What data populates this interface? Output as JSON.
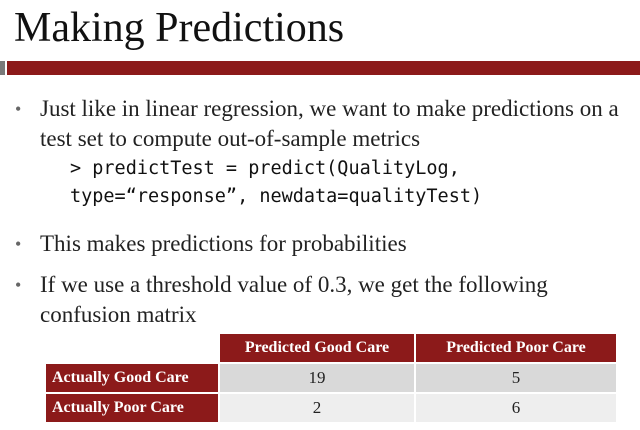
{
  "slide": {
    "title": "Making Predictions",
    "bullets": [
      "Just like in linear regression, we want to make predictions on a test set to compute out-of-sample metrics",
      "This makes predictions for probabilities",
      "If we use a threshold value of 0.3, we get the following confusion matrix"
    ],
    "bullet_marker": "•",
    "code_lines": [
      "> predictTest = predict(QualityLog,",
      "type=“response”, newdata=qualityTest)"
    ]
  },
  "confusion_matrix": {
    "columns": [
      "Predicted Good Care",
      "Predicted Poor Care"
    ],
    "rows": [
      {
        "label": "Actually Good Care",
        "values": [
          "19",
          "5"
        ]
      },
      {
        "label": "Actually Poor Care",
        "values": [
          "2",
          "6"
        ]
      }
    ]
  },
  "colors": {
    "accent": "#8c1a1a",
    "cell_light": "#d9d9d9",
    "cell_lighter": "#eeeeee"
  }
}
